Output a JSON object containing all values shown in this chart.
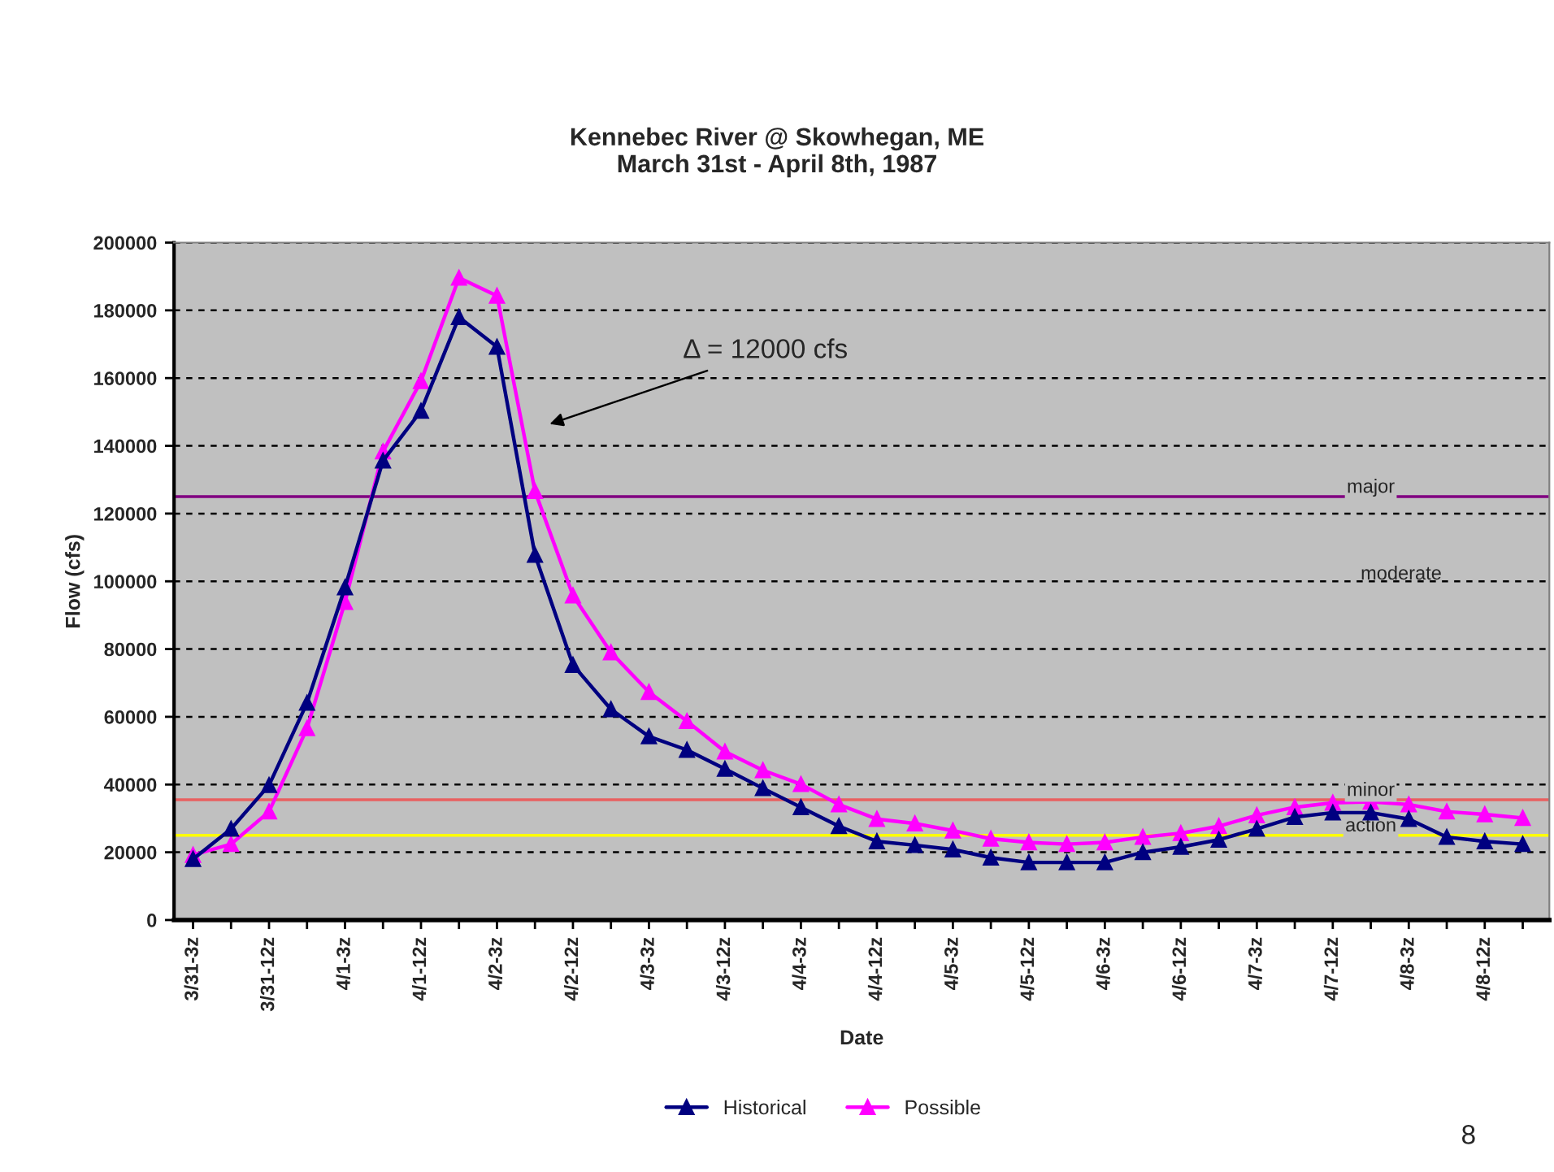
{
  "chart_data": {
    "type": "line",
    "title": "Kennebec River @ Skowhegan, ME\nMarch 31st - April 8th, 1987",
    "xlabel": "Date",
    "ylabel": "Flow (cfs)",
    "categories": [
      "3/31-3z",
      null,
      "3/31-12z",
      null,
      "4/1-3z",
      null,
      "4/1-12z",
      null,
      "4/2-3z",
      null,
      "4/2-12z",
      null,
      "4/3-3z",
      null,
      "4/3-12z",
      null,
      "4/4-3z",
      null,
      "4/4-12z",
      null,
      "4/5-3z",
      null,
      "4/5-12z",
      null,
      "4/6-3z",
      null,
      "4/6-12z",
      null,
      "4/7-3z",
      null,
      "4/7-12z",
      null,
      "4/8-3z",
      null,
      "4/8-12z",
      null
    ],
    "series": [
      {
        "name": "Historical",
        "color": "#000080",
        "values": [
          18000,
          26900,
          39800,
          64100,
          98200,
          135600,
          150300,
          178000,
          169200,
          107800,
          75300,
          62200,
          54200,
          50200,
          44600,
          38900,
          33300,
          27700,
          23200,
          22100,
          20800,
          18400,
          17000,
          17000,
          17000,
          20000,
          21600,
          23700,
          26900,
          30400,
          31700,
          31700,
          29800,
          24500,
          23200,
          22400
        ]
      },
      {
        "name": "Possible",
        "color": "#ff00ff",
        "values": [
          19200,
          22400,
          32000,
          56600,
          93900,
          138300,
          159100,
          189600,
          184300,
          126600,
          95800,
          79000,
          67300,
          58700,
          49700,
          44200,
          40100,
          34100,
          29800,
          28500,
          26400,
          24000,
          22900,
          22400,
          22900,
          24500,
          25600,
          27700,
          30900,
          33300,
          34600,
          34900,
          34100,
          32000,
          31200,
          30100
        ]
      }
    ],
    "ylim": [
      0,
      200000
    ],
    "yticks": [
      0,
      20000,
      40000,
      60000,
      80000,
      100000,
      120000,
      140000,
      160000,
      180000,
      200000
    ],
    "grid": "y",
    "legend": "bottom",
    "marker": "triangle",
    "line_style": "solid",
    "ref_lines": [
      {
        "axis": "y",
        "value": 125000,
        "label": "major",
        "color": "#800080"
      },
      {
        "axis": "y",
        "value": 35500,
        "label": "minor",
        "color": "#e86060"
      },
      {
        "axis": "y",
        "value": 25000,
        "label": "action",
        "color": "#ffff00"
      }
    ],
    "annotations": [
      "Δ = 12000 cfs",
      "moderate",
      "8"
    ]
  }
}
